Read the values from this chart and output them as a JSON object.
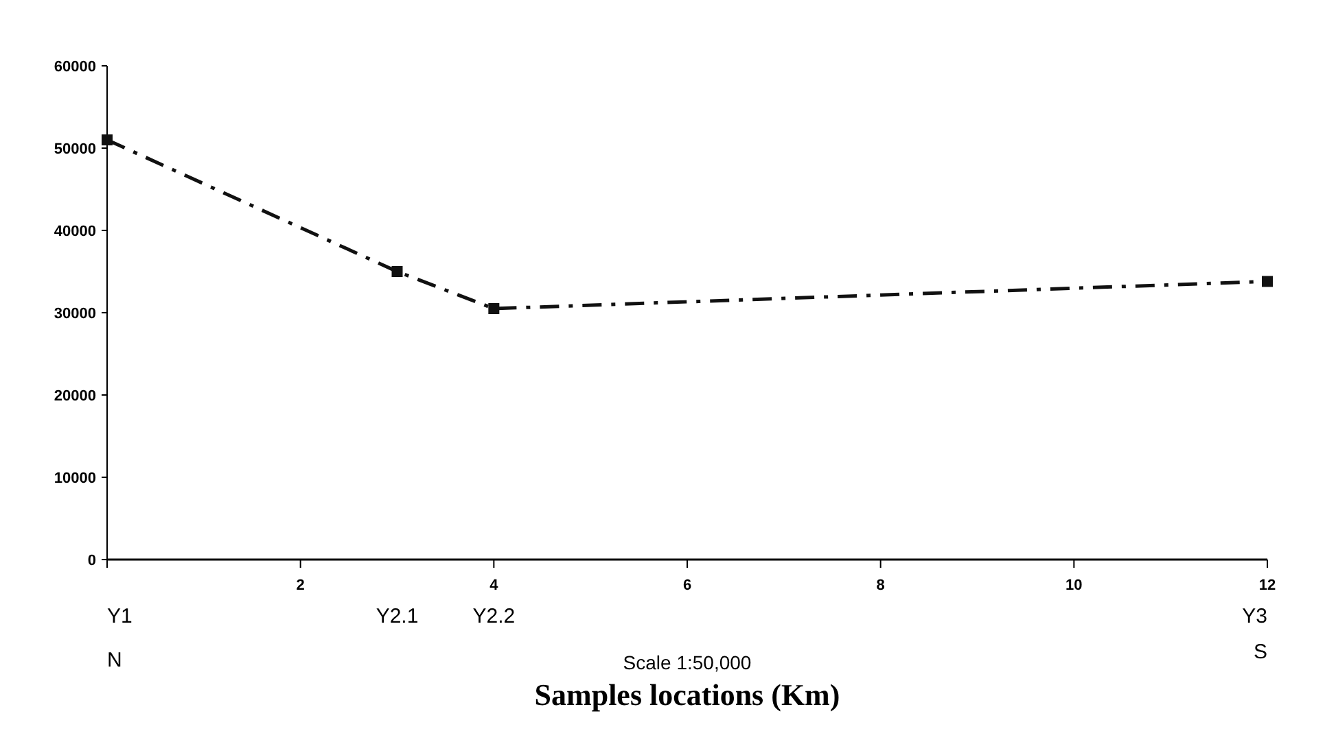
{
  "chart_data": {
    "type": "line",
    "xlabel": "Samples locations (Km)",
    "x": [
      0,
      3,
      4,
      12
    ],
    "series": [
      {
        "color": "#111111",
        "values": [
          51000,
          35000,
          30500,
          33800
        ]
      }
    ],
    "xlim": [
      0,
      12
    ],
    "xticks": [
      {
        "value": 0,
        "label": null
      },
      2,
      4,
      6,
      8,
      10,
      12
    ],
    "ylim": [
      0,
      60000
    ],
    "yticks": [
      0,
      10000,
      20000,
      30000,
      40000,
      50000,
      60000
    ],
    "marker": "square",
    "line_style": "dashed",
    "grid": false,
    "annotations": [
      "Y1",
      "Y2.1",
      "Y2.2",
      "Y3",
      "N",
      "S",
      "Scale 1:50,000"
    ]
  }
}
